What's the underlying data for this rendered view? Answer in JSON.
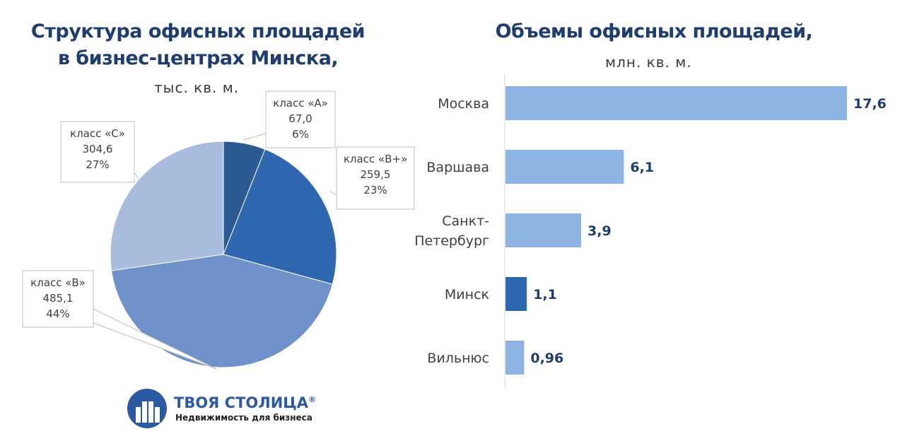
{
  "chart_data": [
    {
      "type": "pie",
      "title": "Структура офисных площадей в бизнес-центрах Минска,",
      "title_lines": [
        "Структура офисных площадей",
        "в бизнес-центрах Минска,"
      ],
      "unit": "тыс. кв. м.",
      "slices": [
        {
          "name": "класс «А»",
          "value": 67.0,
          "value_label": "67,0",
          "percent_label": "6%",
          "color": "#2c5a94"
        },
        {
          "name": "класс «В+»",
          "value": 259.5,
          "value_label": "259,5",
          "percent_label": "23%",
          "color": "#2f67b1"
        },
        {
          "name": "класс «В»",
          "value": 485.1,
          "value_label": "485,1",
          "percent_label": "44%",
          "color": "#6e92c9"
        },
        {
          "name": "класс «С»",
          "value": 304.6,
          "value_label": "304,6",
          "percent_label": "27%",
          "color": "#a9bcdd"
        }
      ]
    },
    {
      "type": "bar",
      "orientation": "horizontal",
      "title": "Объемы офисных площадей,",
      "unit": "млн. кв. м.",
      "categories": [
        "Москва",
        "Варшава",
        "Санкт-Петербург",
        "Минск",
        "Вильнюс"
      ],
      "category_lines": [
        [
          "Москва"
        ],
        [
          "Варшава"
        ],
        [
          "Санкт-",
          "Петербург"
        ],
        [
          "Минск"
        ],
        [
          "Вильнюс"
        ]
      ],
      "values": [
        17.6,
        6.1,
        3.9,
        1.1,
        0.96
      ],
      "value_labels": [
        "17,6",
        "6,1",
        "3,9",
        "1,1",
        "0,96"
      ],
      "highlight": "Минск",
      "colors": {
        "bar": "#8eb4e3",
        "highlight": "#2f67b1"
      },
      "xlim": [
        0,
        18
      ]
    }
  ],
  "logo": {
    "name": "ТВОЯ СТОЛИЦА",
    "mark": "®",
    "tagline": "Недвижимость для бизнеса",
    "color": "#2c5aa0"
  }
}
